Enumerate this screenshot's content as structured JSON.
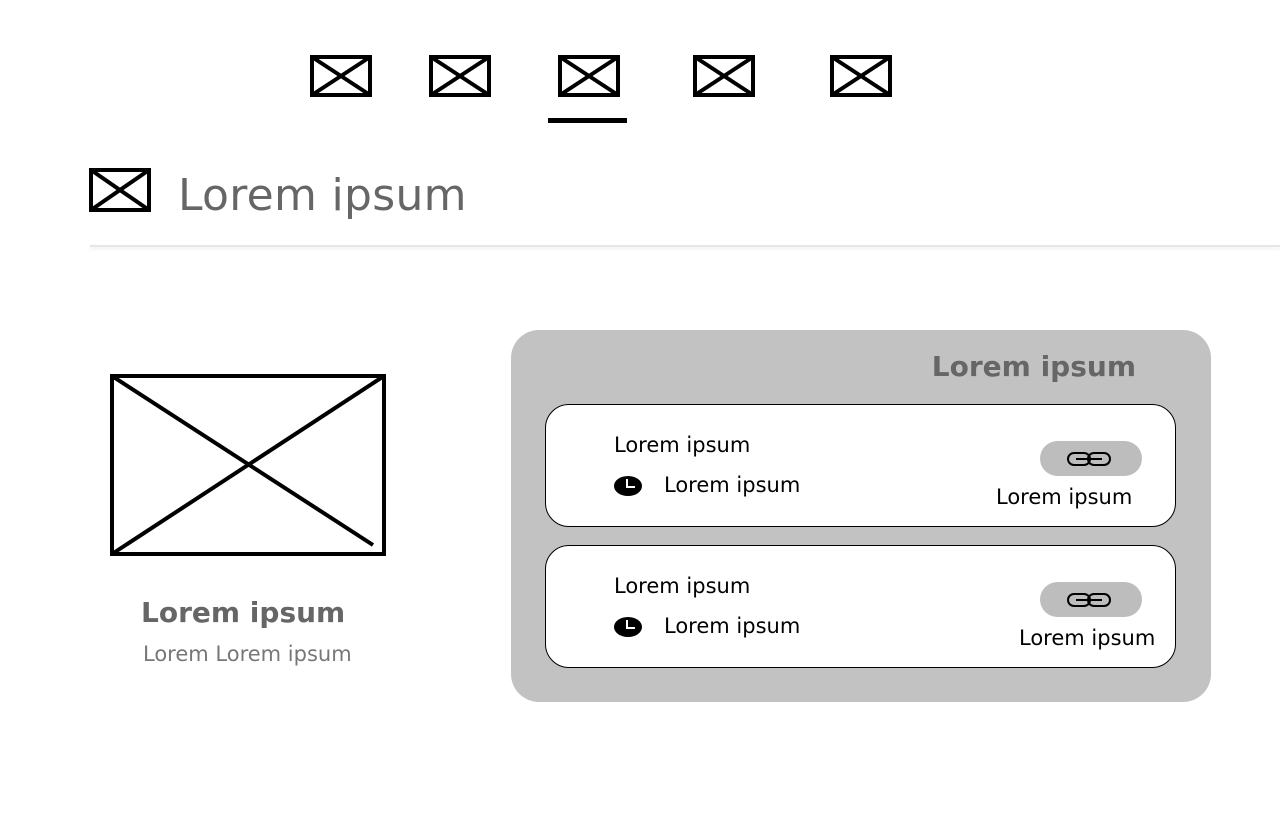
{
  "nav": {
    "tabs": [
      {
        "icon": "image-placeholder-icon",
        "selected": false
      },
      {
        "icon": "image-placeholder-icon",
        "selected": false
      },
      {
        "icon": "image-placeholder-icon",
        "selected": true
      },
      {
        "icon": "image-placeholder-icon",
        "selected": false
      },
      {
        "icon": "image-placeholder-icon",
        "selected": false
      }
    ]
  },
  "header": {
    "icon": "image-placeholder-icon",
    "title": "Lorem ipsum"
  },
  "profile": {
    "image_icon": "image-placeholder-icon",
    "name": "Lorem ipsum",
    "subtitle": "Lorem Lorem ipsum"
  },
  "panel": {
    "title": "Lorem ipsum",
    "cards": [
      {
        "title": "Lorem ipsum",
        "time": "Lorem ipsum",
        "link_label": "Lorem ipsum",
        "icon_time": "clock-icon",
        "icon_link": "link-icon"
      },
      {
        "title": "Lorem ipsum",
        "time": "Lorem ipsum",
        "link_label": "Lorem ipsum",
        "icon_time": "clock-icon",
        "icon_link": "link-icon"
      }
    ]
  },
  "colors": {
    "text_gray": "#666666",
    "panel_bg": "#c2c2c2",
    "button_bg": "#bdbdbd"
  }
}
